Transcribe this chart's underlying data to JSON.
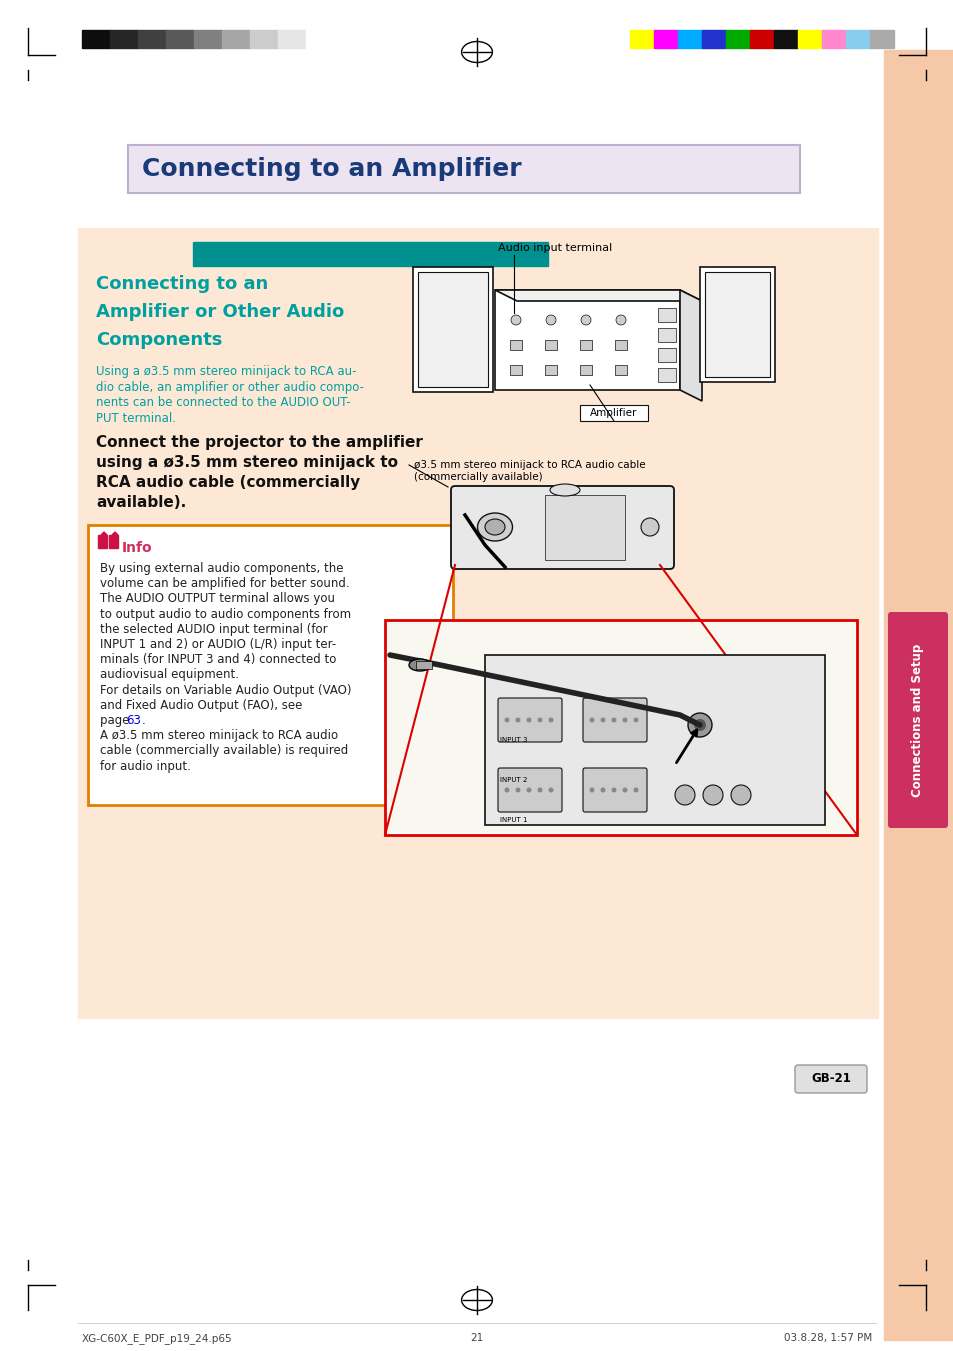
{
  "page_bg": "#ffffff",
  "content_bg": "#fce8d5",
  "sidebar_bg": "#f5c8a8",
  "title_box_bg": "#ece4f0",
  "title_box_border": "#c0b0d0",
  "title_text": "Connecting to an Amplifier",
  "title_color": "#1a3a7a",
  "section_bar_color": "#009090",
  "section_title_color": "#00a0a0",
  "subtitle_color": "#00a0a0",
  "bold_text_color": "#111111",
  "info_box_bg": "#ffffff",
  "info_box_border": "#e08000",
  "info_title": "Info",
  "info_title_color": "#d03060",
  "info_text_color": "#222222",
  "info_link_color": "#0000dd",
  "sidebar_text": "Connections and Setup",
  "sidebar_text_color": "#ffffff",
  "sidebar_tab_color": "#cc3060",
  "footer_left": "XG-C60X_E_PDF_p19_24.p65",
  "footer_center": "21",
  "footer_right": "03.8.28, 1:57 PM",
  "page_num_text": "GB-21",
  "diagram_line": "#111111",
  "red_zoom": "#dd0000",
  "colors_left": [
    "#0d0d0d",
    "#262626",
    "#404040",
    "#595959",
    "#808080",
    "#a6a6a6",
    "#cccccc",
    "#e6e6e6",
    "#ffffff"
  ],
  "colors_right": [
    "#ffff00",
    "#ff00ff",
    "#00aaff",
    "#2233cc",
    "#00aa00",
    "#cc0000",
    "#111111",
    "#ffff00",
    "#ff88cc",
    "#88ccee",
    "#aaaaaa"
  ]
}
